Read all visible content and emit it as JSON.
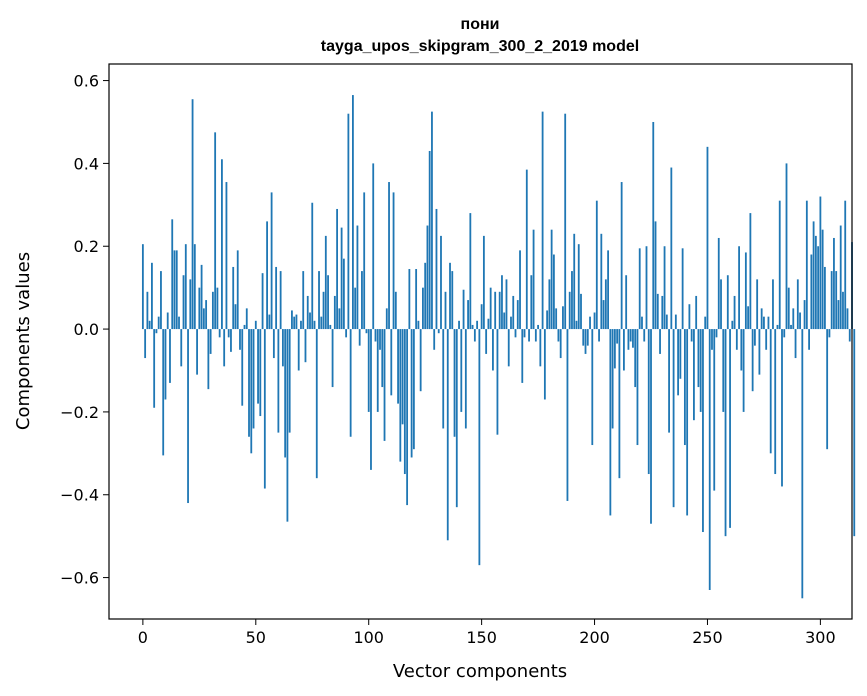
{
  "chart_data": {
    "type": "bar",
    "title_line1": "пони",
    "title_line2": "tayga_upos_skipgram_300_2_2019 model",
    "xlabel": "Vector components",
    "ylabel": "Components values",
    "xlim": [
      -15,
      314
    ],
    "ylim": [
      -0.7,
      0.64
    ],
    "xticks": [
      0,
      50,
      100,
      150,
      200,
      250,
      300
    ],
    "yticks": [
      -0.6,
      -0.4,
      -0.2,
      0.0,
      0.2,
      0.4,
      0.6
    ],
    "xtick_labels": [
      "0",
      "50",
      "100",
      "150",
      "200",
      "250",
      "300"
    ],
    "ytick_labels": [
      "−0.6",
      "−0.4",
      "−0.2",
      "0.0",
      "0.2",
      "0.4",
      "0.6"
    ],
    "bar_color": "#1f77b4",
    "values": [
      0.205,
      -0.07,
      0.09,
      0.02,
      0.16,
      -0.19,
      -0.01,
      0.03,
      0.14,
      -0.305,
      -0.17,
      0.04,
      -0.13,
      0.265,
      0.19,
      0.19,
      0.03,
      -0.09,
      0.13,
      0.205,
      -0.42,
      0.12,
      0.555,
      0.205,
      -0.11,
      0.1,
      0.155,
      0.05,
      0.07,
      -0.145,
      -0.06,
      0.09,
      0.475,
      0.1,
      -0.02,
      0.41,
      -0.09,
      0.355,
      -0.02,
      -0.055,
      0.15,
      0.06,
      0.19,
      -0.05,
      -0.185,
      0.01,
      0.05,
      -0.26,
      -0.3,
      -0.24,
      0.02,
      -0.18,
      -0.21,
      0.135,
      -0.385,
      0.26,
      0.035,
      0.33,
      -0.07,
      0.15,
      -0.25,
      0.14,
      -0.09,
      -0.31,
      -0.465,
      -0.25,
      0.045,
      0.03,
      0.035,
      -0.1,
      0.02,
      0.14,
      -0.08,
      0.08,
      0.04,
      0.305,
      0.02,
      -0.36,
      0.14,
      0.03,
      0.09,
      0.225,
      0.13,
      0.01,
      -0.14,
      0.08,
      0.29,
      0.05,
      0.245,
      0.17,
      -0.02,
      0.52,
      -0.26,
      0.565,
      0.1,
      0.25,
      -0.04,
      0.14,
      0.33,
      -0.01,
      -0.2,
      -0.34,
      0.4,
      -0.03,
      -0.2,
      -0.05,
      -0.14,
      -0.27,
      0.05,
      0.355,
      -0.16,
      0.33,
      0.09,
      -0.18,
      -0.32,
      -0.23,
      -0.35,
      -0.425,
      0.145,
      -0.31,
      -0.29,
      0.145,
      0.02,
      -0.15,
      0.1,
      0.16,
      0.25,
      0.43,
      0.525,
      -0.05,
      0.29,
      -0.01,
      0.225,
      -0.24,
      0.09,
      -0.51,
      0.16,
      0.14,
      -0.26,
      -0.43,
      0.02,
      -0.2,
      0.095,
      -0.24,
      0.07,
      0.28,
      0.01,
      -0.03,
      0.02,
      -0.57,
      0.06,
      0.225,
      -0.06,
      0.025,
      0.1,
      -0.1,
      0.09,
      -0.255,
      0.09,
      0.13,
      0.04,
      0.12,
      -0.09,
      0.03,
      0.08,
      -0.02,
      0.07,
      0.19,
      -0.13,
      -0.02,
      0.385,
      -0.03,
      0.13,
      0.24,
      -0.03,
      0.01,
      -0.09,
      0.525,
      -0.17,
      0.045,
      0.12,
      0.24,
      0.18,
      0.05,
      -0.03,
      -0.07,
      0.055,
      0.52,
      -0.415,
      0.09,
      0.14,
      0.23,
      0.02,
      0.205,
      0.085,
      -0.04,
      -0.06,
      -0.04,
      0.03,
      -0.28,
      0.04,
      0.31,
      -0.03,
      0.23,
      0.07,
      0.12,
      0.19,
      -0.45,
      -0.24,
      -0.095,
      -0.035,
      -0.36,
      0.355,
      -0.1,
      0.13,
      -0.05,
      -0.03,
      -0.045,
      -0.14,
      -0.28,
      0.195,
      0.03,
      -0.03,
      0.2,
      -0.35,
      -0.47,
      0.5,
      0.26,
      0.085,
      -0.06,
      0.08,
      0.2,
      0.035,
      -0.25,
      0.39,
      -0.43,
      0.035,
      -0.16,
      -0.12,
      0.195,
      -0.28,
      -0.45,
      0.06,
      -0.03,
      -0.22,
      0.08,
      -0.14,
      -0.2,
      -0.49,
      0.03,
      0.44,
      -0.63,
      -0.05,
      -0.39,
      -0.02,
      0.22,
      0.12,
      -0.2,
      -0.5,
      0.13,
      -0.48,
      0.02,
      0.08,
      -0.05,
      0.2,
      -0.1,
      -0.2,
      0.185,
      0.055,
      0.28,
      -0.15,
      -0.04,
      0.12,
      -0.11,
      0.05,
      0.03,
      -0.05,
      0.03,
      -0.3,
      0.12,
      -0.35,
      0.01,
      0.31,
      -0.38,
      -0.02,
      0.4,
      0.1,
      0.01,
      0.05,
      -0.07,
      0.12,
      0.04,
      -0.65,
      0.07,
      0.31,
      -0.05,
      0.18,
      0.26,
      0.225,
      0.2,
      0.32,
      0.24,
      0.15,
      -0.29,
      -0.02,
      0.14,
      0.22,
      0.14,
      0.07,
      0.25,
      0.09,
      0.31,
      0.05,
      -0.03,
      0.21,
      -0.5
    ]
  }
}
